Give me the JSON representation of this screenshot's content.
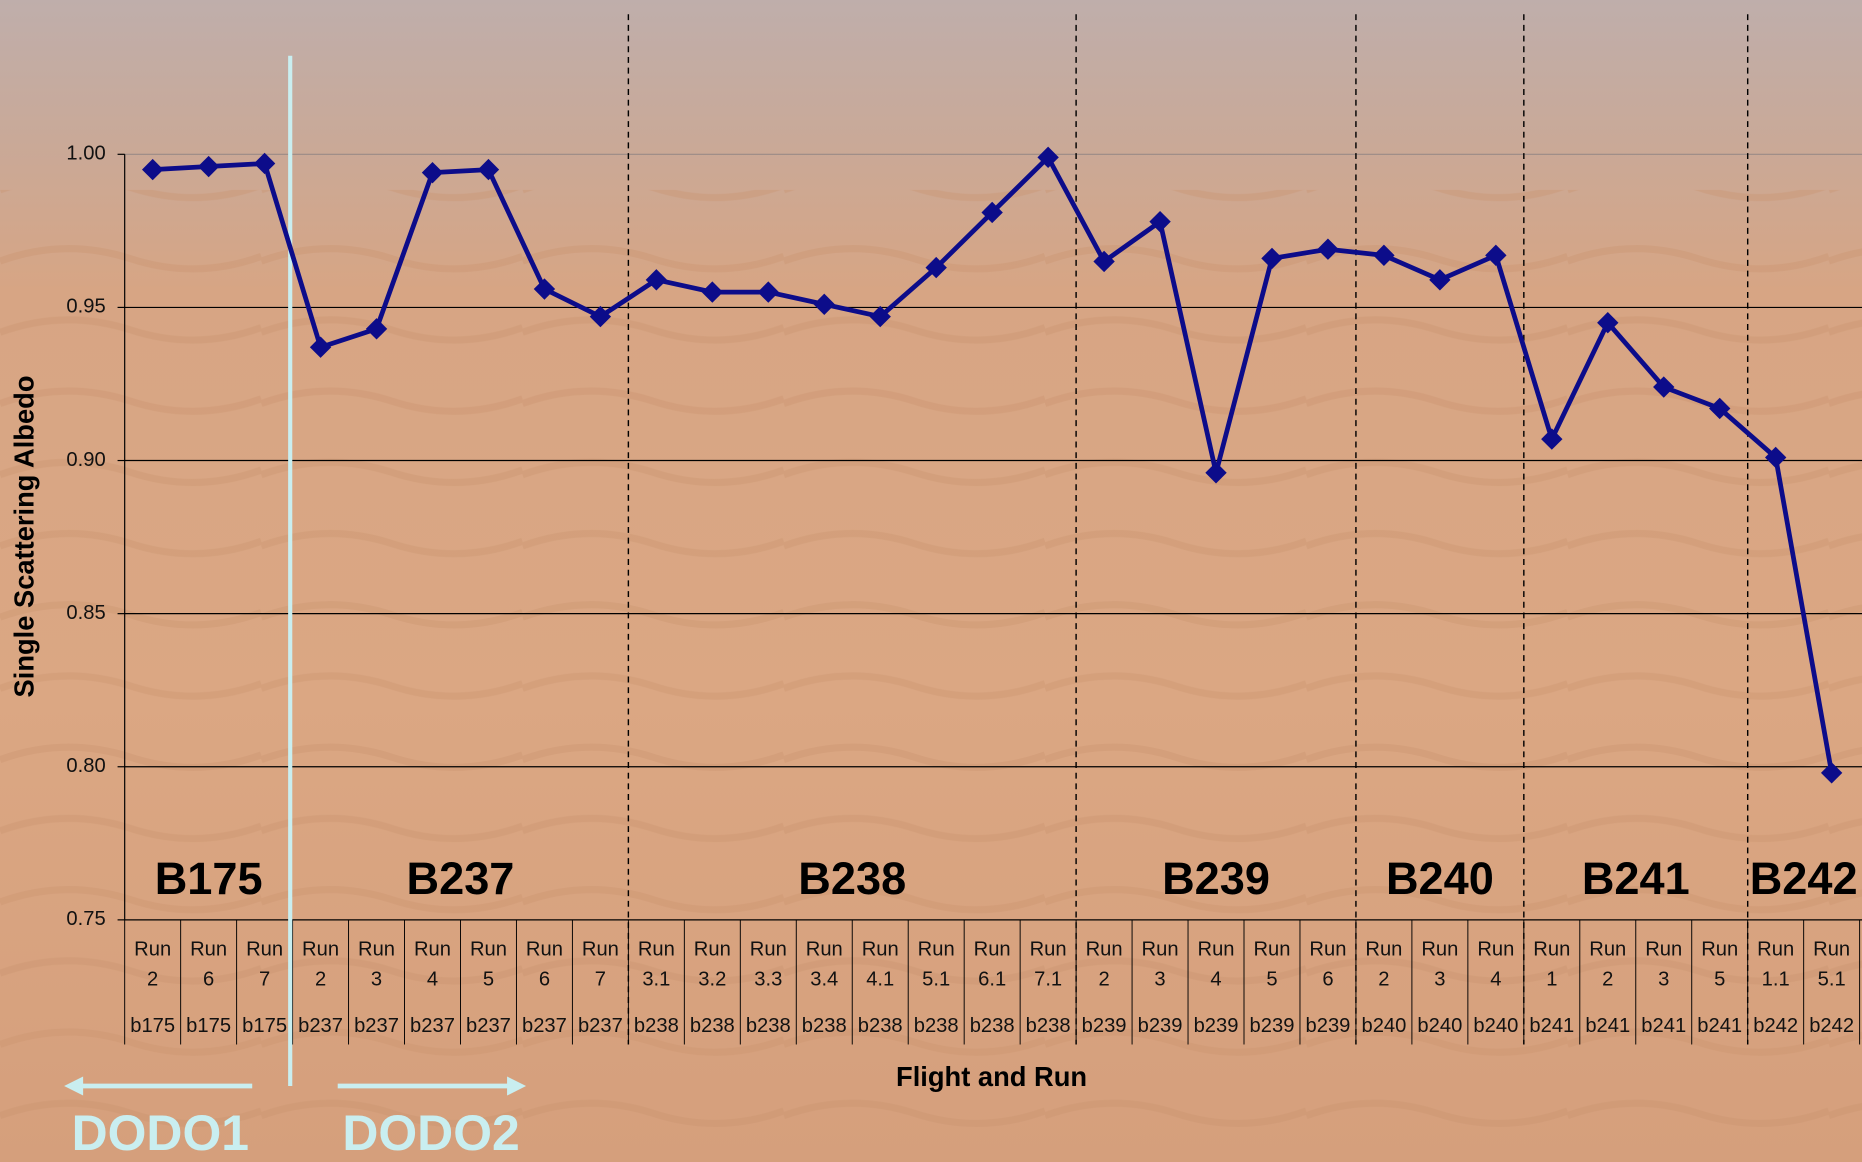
{
  "chart_data": {
    "type": "line",
    "y_title": "Single Scattering Albedo",
    "x_title": "Flight and Run",
    "categories": [
      "Run 2",
      "Run 6",
      "Run 7",
      "Run 2",
      "Run 3",
      "Run 4",
      "Run 5",
      "Run 6",
      "Run 7",
      "Run 3.1",
      "Run 3.2",
      "Run 3.3",
      "Run 3.4",
      "Run 4.1",
      "Run 5.1",
      "Run 6.1",
      "Run 7.1",
      "Run 2",
      "Run 3",
      "Run 4",
      "Run 5",
      "Run 6",
      "Run 2",
      "Run 3",
      "Run 4",
      "Run 1",
      "Run 2",
      "Run 3",
      "Run 5",
      "Run 1.1",
      "Run 5.1"
    ],
    "flight_labels": [
      "b175",
      "b175",
      "b175",
      "b237",
      "b237",
      "b237",
      "b237",
      "b237",
      "b237",
      "b238",
      "b238",
      "b238",
      "b238",
      "b238",
      "b238",
      "b238",
      "b238",
      "b239",
      "b239",
      "b239",
      "b239",
      "b239",
      "b240",
      "b240",
      "b240",
      "b241",
      "b241",
      "b241",
      "b241",
      "b242",
      "b242"
    ],
    "group_labels": [
      "B175",
      "B237",
      "B238",
      "B239",
      "B240",
      "B241",
      "B242"
    ],
    "values": [
      0.995,
      0.996,
      0.997,
      0.937,
      0.943,
      0.994,
      0.995,
      0.956,
      0.947,
      0.959,
      0.955,
      0.955,
      0.951,
      0.947,
      0.963,
      0.981,
      0.999,
      0.965,
      0.978,
      0.896,
      0.966,
      0.969,
      0.967,
      0.959,
      0.967,
      0.907,
      0.945,
      0.924,
      0.917,
      0.901,
      0.798
    ],
    "color": "#0c0c8a",
    "ylim": [
      0.75,
      1.0
    ],
    "yticks": [
      {
        "value": 0.75,
        "label": "0.75"
      },
      {
        "value": 0.8,
        "label": "0.80"
      },
      {
        "value": 0.85,
        "label": "0.85"
      },
      {
        "value": 0.9,
        "label": "0.90"
      },
      {
        "value": 0.95,
        "label": "0.95"
      },
      {
        "value": 1.0,
        "label": "1.00"
      }
    ],
    "grid": true,
    "annotations": [
      "DODO1",
      "DODO2"
    ]
  }
}
